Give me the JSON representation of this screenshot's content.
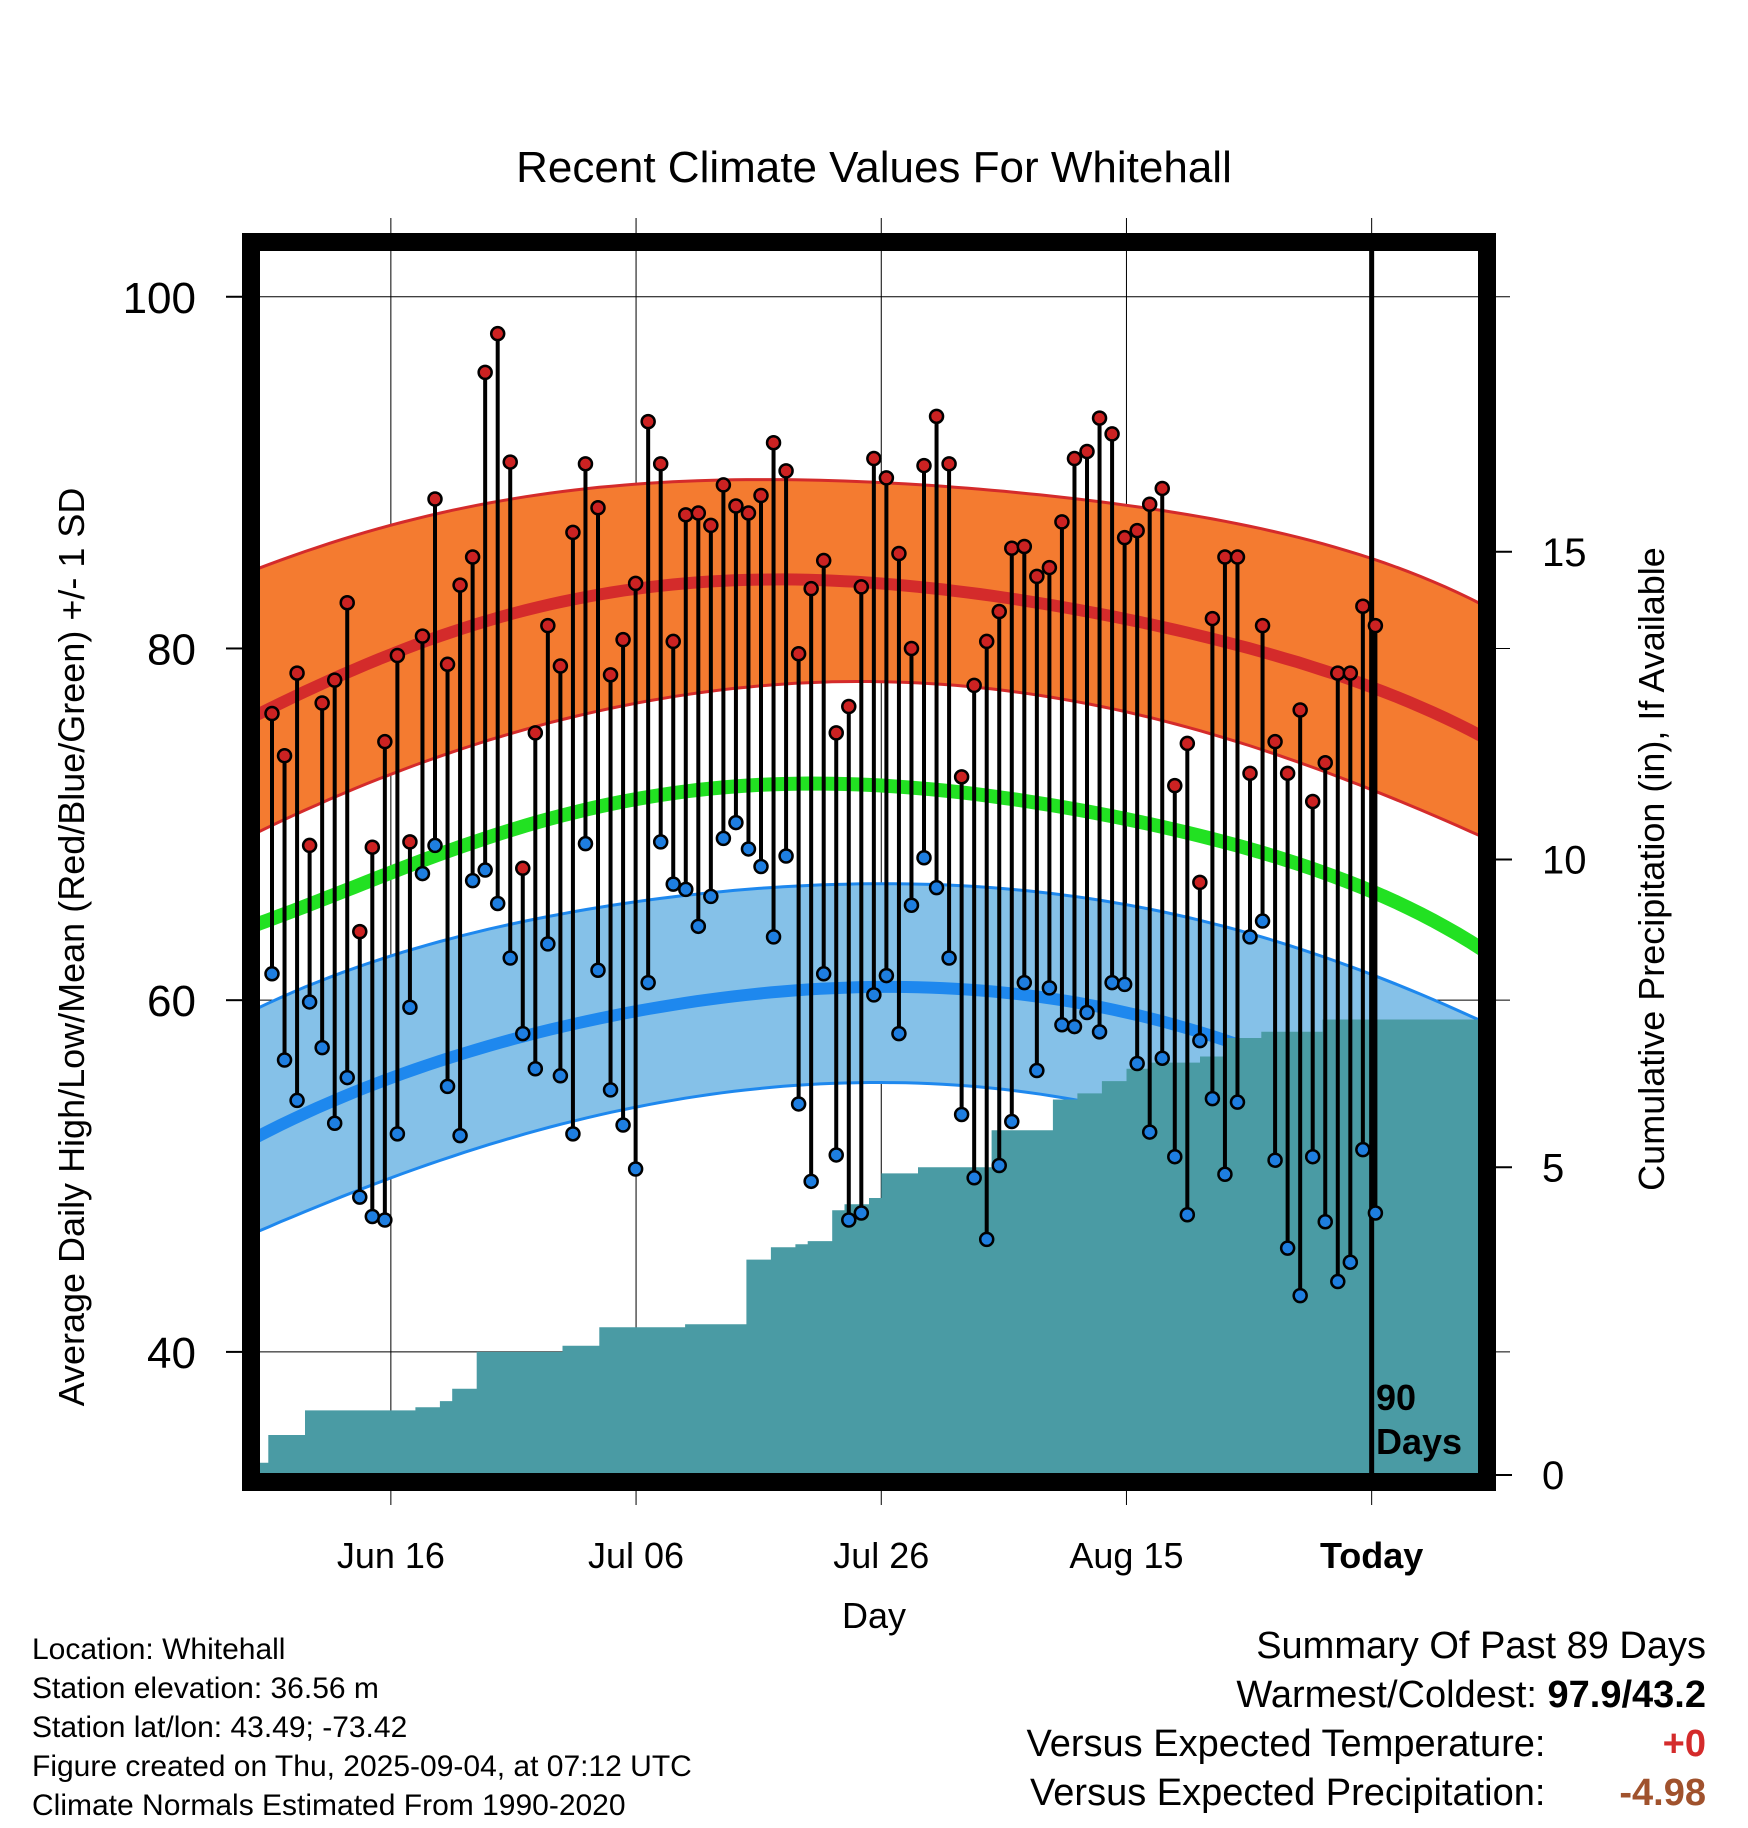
{
  "chart_data": {
    "type": "line",
    "title": "Recent Climate Values For Whitehall",
    "xlabel": "Day",
    "ylabel": "Average Daily High/Low/Mean (Red/Blue/Green) +/- 1 SD",
    "y2label": "Cumulative Precipitation (in), If Available",
    "x_tick_labels": [
      "Jun 16",
      "Jul 06",
      "Jul 26",
      "Aug 15",
      "Today"
    ],
    "x_tick_days": [
      11,
      31,
      51,
      71,
      91
    ],
    "x_range_days": [
      0,
      100
    ],
    "ylim": [
      33,
      103
    ],
    "y_ticks": [
      40,
      60,
      80,
      100
    ],
    "y2lim": [
      0,
      20
    ],
    "y2_ticks": [
      0,
      5,
      10,
      15
    ],
    "today_marker_label_line1": "90",
    "today_marker_label_line2": "Days",
    "normal_curves": {
      "days": [
        0,
        20,
        40,
        60,
        80,
        100
      ],
      "high_mean": [
        76.2,
        81.8,
        83.9,
        83.0,
        80.2,
        75.0
      ],
      "high_upper": [
        84.5,
        88.4,
        89.6,
        89.0,
        87.1,
        82.5
      ],
      "high_lower": [
        69.5,
        75.0,
        77.8,
        77.7,
        74.7,
        69.3
      ],
      "low_mean": [
        52.2,
        57.6,
        60.3,
        60.5,
        57.5,
        50.8
      ],
      "low_upper": [
        59.5,
        64.2,
        66.3,
        66.4,
        64.0,
        58.8
      ],
      "low_lower": [
        46.8,
        52.0,
        54.9,
        55.0,
        51.9,
        44.6
      ],
      "avg_mean": [
        64.3,
        69.5,
        72.2,
        71.6,
        68.8,
        62.9
      ]
    },
    "series": [
      {
        "name": "High",
        "values": [
          76.3,
          73.9,
          78.6,
          68.8,
          76.9,
          78.2,
          82.6,
          63.9,
          68.7,
          74.7,
          79.6,
          69.0,
          80.7,
          88.5,
          79.1,
          83.6,
          85.2,
          95.7,
          97.9,
          90.6,
          67.5,
          75.2,
          81.3,
          79.0,
          86.6,
          90.5,
          88.0,
          78.5,
          80.5,
          83.7,
          92.9,
          90.5,
          80.4,
          87.6,
          87.7,
          87.0,
          89.3,
          88.1,
          87.7,
          88.7,
          91.7,
          90.1,
          79.7,
          83.4,
          85.0,
          75.2,
          76.7,
          83.5,
          90.8,
          89.7,
          85.4,
          80.0,
          90.4,
          93.2,
          90.5,
          72.7,
          77.9,
          80.4,
          82.1,
          85.7,
          85.8,
          84.1,
          84.6,
          87.2,
          90.8,
          91.2,
          93.1,
          92.2,
          86.3,
          86.7,
          88.2,
          89.1,
          72.2,
          74.6,
          66.7,
          81.7,
          85.2,
          85.2,
          72.9,
          81.3,
          74.7,
          72.9,
          76.5,
          71.3,
          73.5,
          78.6,
          78.6,
          82.4,
          81.3
        ],
        "color": "#cc2222"
      },
      {
        "name": "Low",
        "values": [
          61.5,
          56.6,
          54.3,
          59.9,
          57.3,
          53.0,
          55.6,
          48.8,
          47.7,
          47.5,
          52.4,
          59.6,
          67.2,
          68.8,
          55.1,
          52.3,
          66.8,
          67.4,
          65.5,
          62.4,
          58.1,
          56.1,
          63.2,
          55.7,
          52.4,
          68.9,
          61.7,
          54.9,
          52.9,
          50.4,
          61.0,
          69.0,
          66.6,
          66.3,
          64.2,
          65.9,
          69.2,
          70.1,
          68.6,
          67.6,
          63.6,
          68.2,
          54.1,
          49.7,
          61.5,
          51.2,
          47.5,
          47.9,
          60.3,
          61.4,
          58.1,
          65.4,
          68.1,
          66.4,
          62.4,
          53.5,
          49.9,
          46.4,
          50.6,
          53.1,
          61.0,
          56.0,
          60.7,
          58.6,
          58.5,
          59.3,
          58.2,
          61.0,
          60.9,
          56.4,
          52.5,
          56.7,
          51.1,
          47.8,
          57.7,
          54.4,
          50.1,
          54.2,
          63.6,
          64.5,
          50.9,
          45.9,
          43.2,
          51.1,
          47.4,
          44.0,
          45.1,
          51.5,
          47.9
        ],
        "color": "#1e7ee0"
      },
      {
        "name": "Cumulative Precipitation",
        "x": [
          0,
          1,
          3,
          4,
          13,
          15,
          16,
          17,
          18,
          19,
          25,
          26,
          27,
          28,
          29,
          30,
          35,
          36,
          37,
          38,
          39,
          40,
          42,
          43,
          44,
          45,
          46,
          47,
          48,
          50,
          51,
          52,
          53,
          54,
          55,
          56,
          57,
          58,
          60,
          61,
          62,
          63,
          64,
          65,
          66,
          67,
          68,
          69,
          70,
          71,
          72,
          73,
          74,
          75,
          76,
          77,
          78,
          79,
          80,
          81,
          82,
          83,
          84,
          85,
          86,
          87,
          88,
          89,
          90,
          100
        ],
        "values": [
          0.2,
          0.65,
          0.65,
          1.05,
          1.1,
          1.2,
          1.4,
          1.4,
          2.0,
          2.0,
          2.1,
          2.1,
          2.1,
          2.4,
          2.4,
          2.4,
          2.45,
          2.45,
          2.45,
          2.45,
          2.45,
          3.5,
          3.7,
          3.7,
          3.75,
          3.8,
          3.8,
          4.3,
          4.4,
          4.5,
          4.9,
          4.9,
          4.9,
          5.0,
          5.0,
          5.0,
          5.0,
          5.0,
          5.6,
          5.6,
          5.6,
          5.6,
          5.6,
          6.1,
          6.1,
          6.2,
          6.2,
          6.4,
          6.4,
          6.6,
          6.6,
          6.7,
          6.7,
          6.7,
          6.7,
          6.8,
          6.8,
          7.1,
          7.1,
          7.1,
          7.2,
          7.2,
          7.2,
          7.2,
          7.2,
          7.4,
          7.4,
          7.4,
          7.4,
          7.4
        ],
        "color": "#4a9ba4"
      }
    ]
  },
  "info": {
    "location": "Location: Whitehall",
    "elevation": "Station elevation: 36.56 m",
    "latlon": "Station lat/lon: 43.49; -73.42",
    "created": "Figure created on Thu, 2025-09-04, at 07:12 UTC",
    "normals": "Climate Normals Estimated From 1990-2020"
  },
  "summary": {
    "title": "Summary Of Past 89 Days",
    "warmest_coldest_label": "Warmest/Coldest:",
    "warmest_coldest_value": "97.9/43.2",
    "vs_temp_label": "Versus Expected Temperature:",
    "vs_temp_value": "+0",
    "vs_precip_label": "Versus Expected Precipitation:",
    "vs_precip_value": "-4.98"
  },
  "colors": {
    "high_band": "#f47b30",
    "high_line": "#d42b2b",
    "low_band": "#85c1e8",
    "low_line": "#1e88ee",
    "mean_line": "#22e122",
    "precip_fill": "#4a9ba4",
    "high_dot": "#cc2222",
    "low_dot": "#1e7ee0"
  }
}
